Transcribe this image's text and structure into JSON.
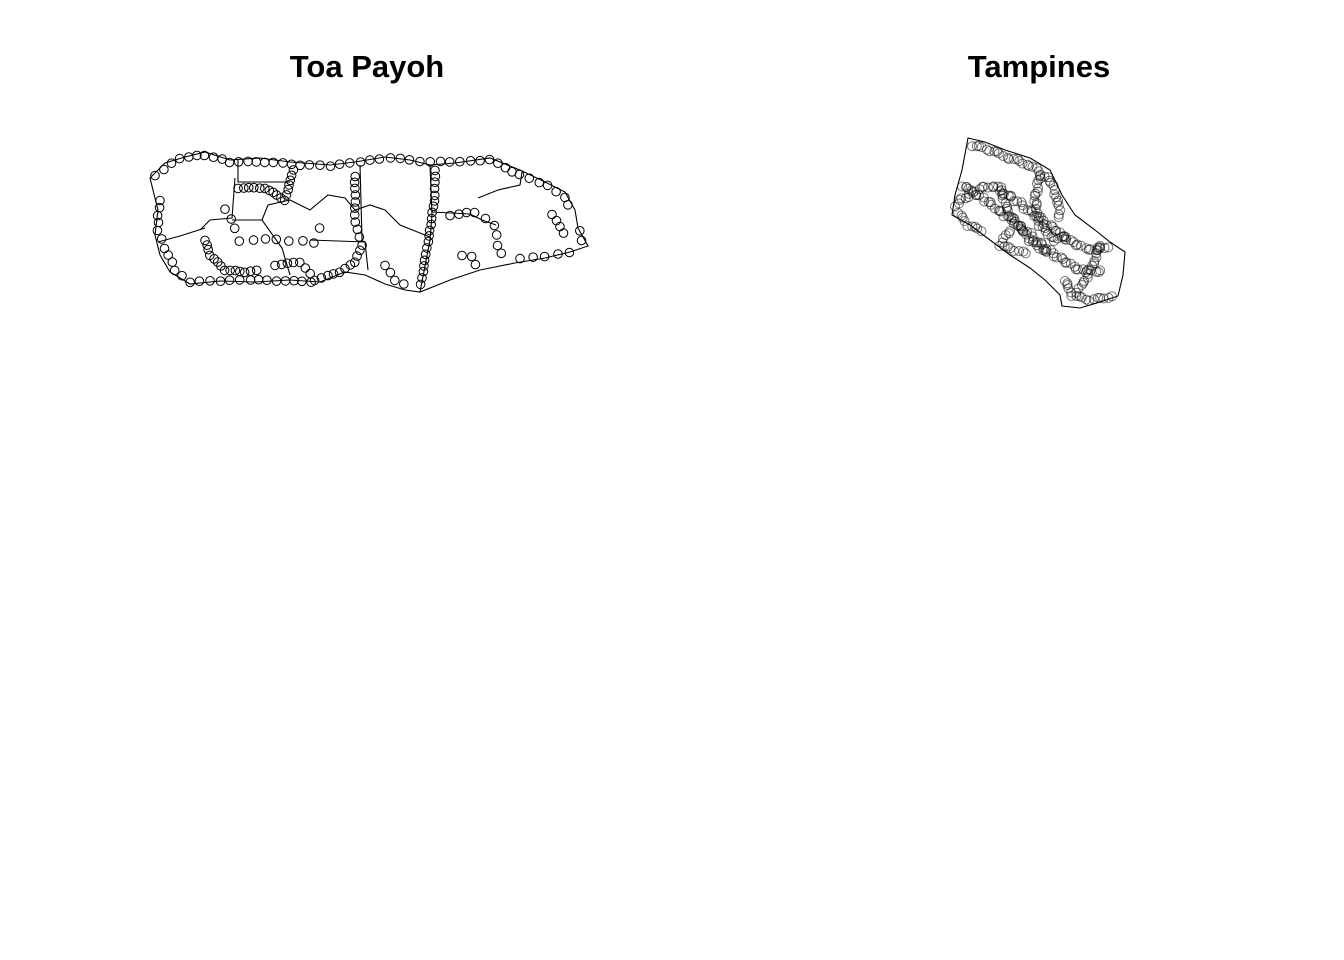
{
  "panels": [
    {
      "title": "Toa Payoh"
    },
    {
      "title": "Tampines"
    }
  ],
  "style": {
    "boundary_color": "#000000",
    "point_color": "#000000",
    "background": "#ffffff"
  }
}
